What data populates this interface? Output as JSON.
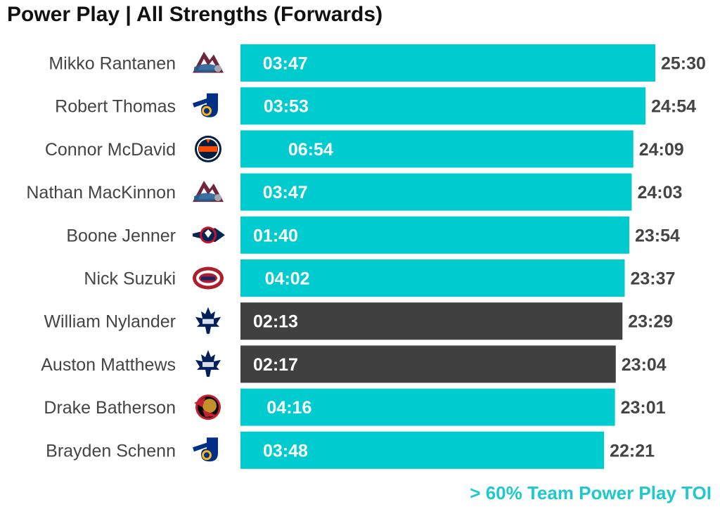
{
  "title": "Power Play | All Strengths (Forwards)",
  "footnote": "> 60% Team Power Play TOI",
  "colors": {
    "highlight": "#00cccf",
    "default": "#404040",
    "footnote": "#1ec8cc",
    "label_text": "#444444"
  },
  "chart_data": {
    "type": "bar",
    "orientation": "horizontal",
    "categories": [
      "Mikko Rantanen",
      "Robert Thomas",
      "Connor McDavid",
      "Nathan MacKinnon",
      "Boone Jenner",
      "Nick Suzuki",
      "William Nylander",
      "Auston Matthews",
      "Drake Batherson",
      "Brayden Schenn"
    ],
    "teams": [
      "COL",
      "STL",
      "EDM",
      "COL",
      "CBJ",
      "MTL",
      "TOR",
      "TOR",
      "OTT",
      "STL"
    ],
    "team_icons": [
      "avalanche-logo",
      "blues-logo",
      "oilers-logo",
      "avalanche-logo",
      "blue-jackets-logo",
      "canadiens-logo",
      "maple-leafs-logo",
      "maple-leafs-logo",
      "senators-logo",
      "blues-logo"
    ],
    "toi_labels": [
      "25:30",
      "24:54",
      "24:09",
      "24:03",
      "23:54",
      "23:37",
      "23:29",
      "23:04",
      "23:01",
      "22:21"
    ],
    "toi_minutes": [
      25.5,
      24.9,
      24.15,
      24.05,
      23.9,
      23.62,
      23.48,
      23.07,
      23.02,
      22.35
    ],
    "pp_labels": [
      "03:47",
      "03:53",
      "06:54",
      "03:47",
      "01:40",
      "04:02",
      "02:13",
      "02:17",
      "04:16",
      "03:48"
    ],
    "pp_minutes": [
      3.78,
      3.88,
      6.9,
      3.78,
      1.67,
      4.03,
      2.22,
      2.28,
      4.27,
      3.8
    ],
    "highlighted": [
      true,
      true,
      true,
      true,
      true,
      true,
      false,
      false,
      true,
      true
    ],
    "xlim": [
      0,
      25.5
    ],
    "grid": false,
    "legend": "none"
  }
}
